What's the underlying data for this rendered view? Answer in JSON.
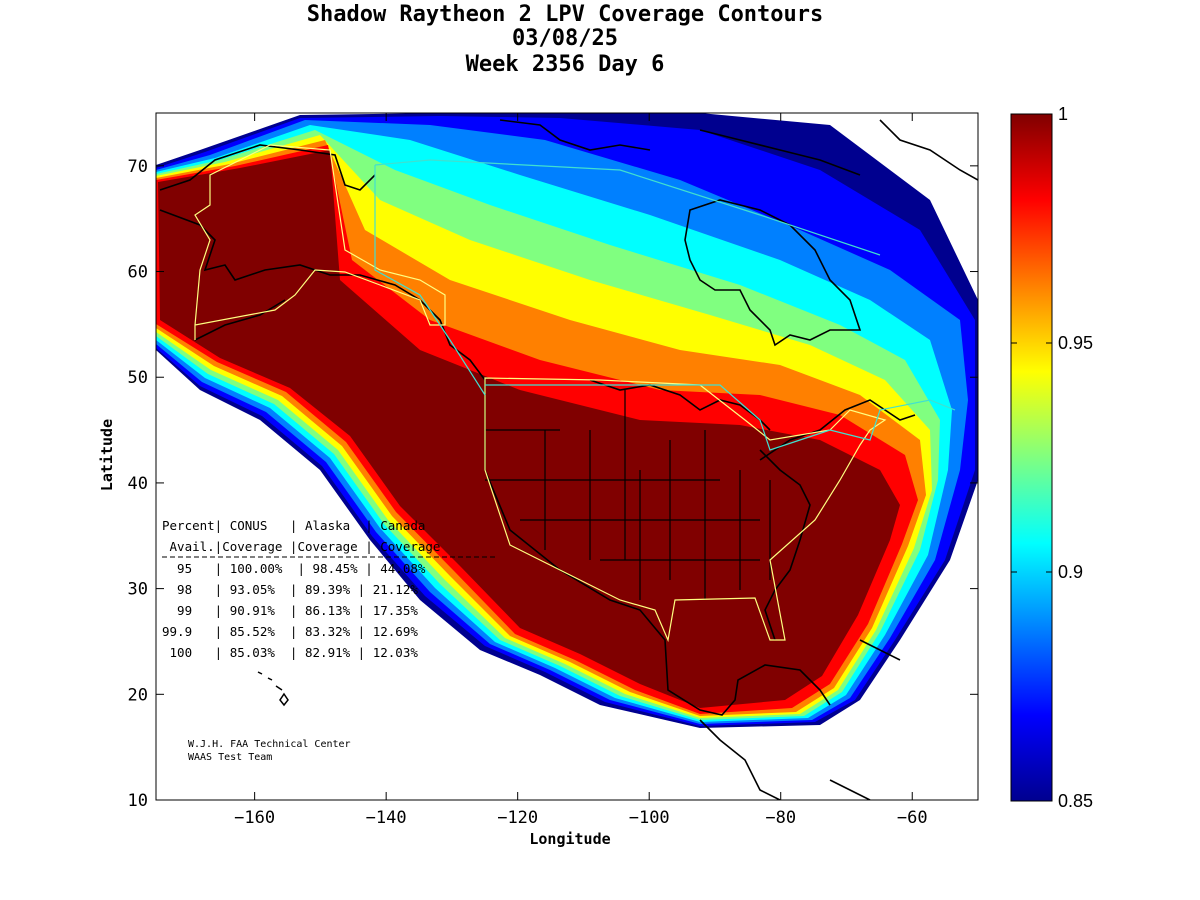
{
  "title": {
    "line1": "Shadow Raytheon 2 LPV Coverage Contours",
    "line2": "03/08/25",
    "line3": "Week 2356 Day 6"
  },
  "axes": {
    "xlabel": "Longitude",
    "ylabel": "Latitude",
    "xlim": [
      -175,
      -50
    ],
    "ylim": [
      10,
      75
    ],
    "xticks": [
      -160,
      -140,
      -120,
      -100,
      -80,
      -60
    ],
    "yticks": [
      10,
      20,
      30,
      40,
      50,
      60,
      70
    ]
  },
  "colorbar": {
    "range": [
      0.85,
      1
    ],
    "ticks": [
      {
        "value": 1,
        "label": "1"
      },
      {
        "value": 0.95,
        "label": "0.95"
      },
      {
        "value": 0.9,
        "label": "0.9"
      },
      {
        "value": 0.85,
        "label": "0.85"
      }
    ],
    "colors": [
      "#00008f",
      "#0000ff",
      "#0080ff",
      "#00ffff",
      "#80ff80",
      "#ffff00",
      "#ff8000",
      "#ff0000",
      "#800000"
    ]
  },
  "table": {
    "header1": "Percent| CONUS   | Alaska  | Canada",
    "header2": " Avail.|Coverage |Coverage | Coverage",
    "rows": [
      "  95   | 100.00%  | 98.45% | 44.08%",
      "  98   | 93.05%  | 89.39% | 21.12%",
      "  99   | 90.91%  | 86.13% | 17.35%",
      "99.9   | 85.52%  | 83.32% | 12.69%",
      " 100   | 85.03%  | 82.91% | 12.03%"
    ]
  },
  "credit": {
    "line1": "W.J.H. FAA Technical Center",
    "line2": "WAAS Test Team"
  },
  "colors": {
    "low": "#00008f",
    "mid": "#00ffff",
    "high": "#800000",
    "yellow": "#ffff00",
    "service_volume": "#ffff80",
    "canada_volume": "#40e0d0"
  }
}
